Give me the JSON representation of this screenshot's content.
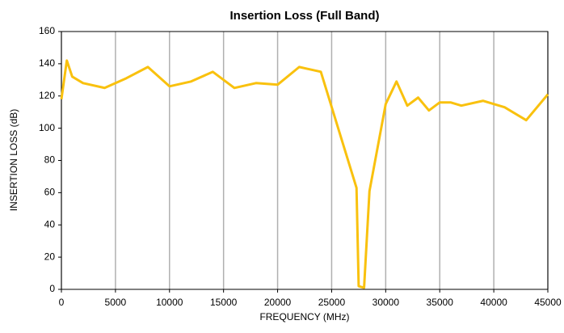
{
  "chart_data": {
    "type": "line",
    "title": "Insertion Loss (Full Band)",
    "x_label": "FREQUENCY (MHz)",
    "y_label": "INSERTION LOSS (dB)",
    "x": [
      0,
      500,
      1000,
      2000,
      4000,
      6000,
      8000,
      10000,
      12000,
      14000,
      16000,
      18000,
      20000,
      22000,
      24000,
      27300,
      27500,
      28000,
      28500,
      30000,
      31000,
      32000,
      33000,
      34000,
      35000,
      36000,
      37000,
      39000,
      41000,
      43000,
      45000
    ],
    "series": [
      {
        "name": "Insertion Loss",
        "color": "#f9c10e",
        "values": [
          118,
          142,
          132,
          128,
          125,
          131,
          138,
          126,
          129,
          135,
          125,
          128,
          127,
          138,
          135,
          63,
          2,
          1,
          61,
          115,
          129,
          114,
          119,
          111,
          116,
          116,
          114,
          117,
          113,
          105,
          121
        ]
      }
    ],
    "xlim": [
      0,
      45000
    ],
    "xticks": [
      0,
      5000,
      10000,
      15000,
      20000,
      25000,
      30000,
      35000,
      40000,
      45000
    ],
    "ylim": [
      0,
      160
    ],
    "yticks": [
      0,
      20,
      40,
      60,
      80,
      100,
      120,
      140,
      160
    ],
    "grid": "x"
  }
}
